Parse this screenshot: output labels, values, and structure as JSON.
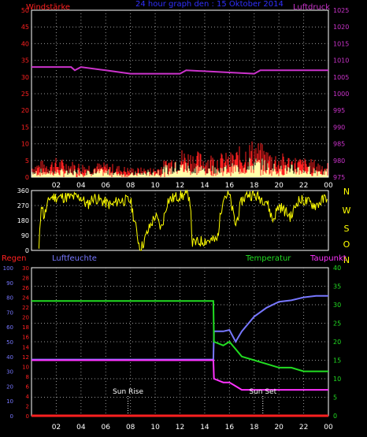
{
  "title": "24 hour graph den : 15 Oktober 2014",
  "colors": {
    "background": "#000000",
    "grid": "#9a9a9a",
    "frame": "#ffffff",
    "wind": "#ff2020",
    "gust": "#ffffaa",
    "pressure": "#cc33cc",
    "direction": "#ffff00",
    "rain": "#ff2020",
    "humidity": "#7777ff",
    "temperature": "#22dd22",
    "dewpoint": "#ff33ff",
    "sun_marker": "#ffffff",
    "title": "#3030ff"
  },
  "x_ticks": [
    "02",
    "04",
    "06",
    "08",
    "10",
    "12",
    "14",
    "16",
    "18",
    "20",
    "22",
    "00"
  ],
  "panel1": {
    "left_label": "Windstärke",
    "right_label": "Luftdruck",
    "left_ticks": [
      "0",
      "5",
      "10",
      "15",
      "20",
      "25",
      "30",
      "35",
      "40",
      "45",
      "50"
    ],
    "right_ticks": [
      "975",
      "980",
      "985",
      "990",
      "995",
      "1000",
      "1005",
      "1010",
      "1015",
      "1020",
      "1025"
    ]
  },
  "panel2": {
    "left_ticks": [
      "0",
      "90",
      "180",
      "270",
      "360"
    ],
    "right_labels": [
      "N",
      "W",
      "S",
      "O",
      "N"
    ]
  },
  "panel3": {
    "rain_label": "Regen",
    "humidity_label": "Luftfeuchte",
    "temperature_label": "Temperatur",
    "dewpoint_label": "Taupunkt",
    "rain_ticks": [
      "0",
      "2",
      "4",
      "6",
      "8",
      "10",
      "12",
      "14",
      "16",
      "18",
      "20",
      "22",
      "24",
      "26",
      "28",
      "30"
    ],
    "humidity_ticks": [
      "0",
      "10",
      "20",
      "30",
      "40",
      "50",
      "60",
      "70",
      "80",
      "90",
      "100"
    ],
    "temperature_ticks": [
      "0",
      "5",
      "10",
      "15",
      "20",
      "25",
      "30",
      "35",
      "40"
    ],
    "sun_rise_label": "Sun Rise",
    "sun_set_label": "Sun Set"
  },
  "chart_data": [
    {
      "type": "line",
      "name": "wind-pressure",
      "x_unit": "hour",
      "xlim": [
        0,
        24
      ],
      "ylim_left": [
        0,
        50
      ],
      "ylim_right": [
        975,
        1025
      ],
      "pressure": {
        "x": [
          0,
          3.2,
          3.5,
          4.0,
          6.0,
          8.0,
          10.0,
          12.0,
          12.5,
          18.0,
          18.5,
          24.0
        ],
        "values": [
          1008,
          1008,
          1007,
          1008,
          1007,
          1006,
          1006,
          1006,
          1007,
          1006,
          1007,
          1007
        ]
      },
      "wind_profile": {
        "x": [
          0,
          2,
          4,
          6,
          8,
          10,
          12,
          14,
          16,
          18,
          19,
          20,
          22,
          24
        ],
        "values": [
          3,
          4,
          3,
          3,
          2,
          2,
          6,
          5,
          5,
          8,
          6,
          5,
          4,
          3
        ]
      },
      "gust_profile": {
        "x": [
          0,
          2,
          4,
          6,
          8,
          10,
          12,
          14,
          16,
          18,
          19,
          20,
          22,
          24
        ],
        "values": [
          2,
          2,
          2,
          2,
          1,
          2,
          4,
          3,
          3,
          5,
          4,
          3,
          3,
          2
        ]
      }
    },
    {
      "type": "line",
      "name": "wind-direction",
      "x_unit": "hour",
      "xlim": [
        0,
        24
      ],
      "ylim": [
        0,
        360
      ],
      "x": [
        0.6,
        0.8,
        1.0,
        1.5,
        4.0,
        4.5,
        5.0,
        6.5,
        7.0,
        8.0,
        8.8,
        9.5,
        10.0,
        10.5,
        11.0,
        12.0,
        12.8,
        13.0,
        14.0,
        15.0,
        15.5,
        16.0,
        16.5,
        17.0,
        17.5,
        18.0,
        19.0,
        19.5,
        20.0,
        21.0,
        21.5,
        22.0,
        23.0,
        24.0
      ],
      "values": [
        0,
        300,
        200,
        320,
        320,
        270,
        320,
        270,
        300,
        300,
        0,
        130,
        210,
        130,
        300,
        330,
        330,
        40,
        60,
        60,
        330,
        330,
        150,
        300,
        340,
        330,
        300,
        180,
        270,
        200,
        300,
        300,
        270,
        330
      ]
    },
    {
      "type": "line",
      "name": "humidity-temperature-dewpoint",
      "x_unit": "hour",
      "xlim": [
        0,
        24
      ],
      "ylim_rain": [
        0,
        30
      ],
      "ylim_humidity": [
        0,
        100
      ],
      "ylim_temperature": [
        0,
        40
      ],
      "temperature": {
        "x": [
          0,
          14.7,
          14.75,
          15.5,
          16.0,
          16.5,
          17.0,
          18.0,
          19.0,
          20.0,
          21.0,
          22.0,
          23.0,
          24.0
        ],
        "values": [
          31,
          31,
          20,
          19,
          20,
          18,
          16,
          15,
          14,
          13,
          13,
          12,
          12,
          12
        ]
      },
      "humidity": {
        "x": [
          0,
          14.7,
          14.75,
          15.5,
          16.0,
          16.5,
          17.0,
          18.0,
          19.0,
          20.0,
          21.0,
          22.0,
          23.0,
          24.0
        ],
        "values": [
          38,
          38,
          57,
          57,
          58,
          50,
          57,
          67,
          73,
          77,
          78,
          80,
          81,
          81
        ]
      },
      "dewpoint": {
        "x": [
          0,
          14.7,
          14.75,
          15.5,
          16.0,
          16.5,
          17.0,
          18.0,
          19.0,
          20.0,
          22.0,
          24.0
        ],
        "values": [
          15,
          15,
          10,
          9,
          9,
          8,
          7,
          7,
          7,
          7,
          7,
          7
        ]
      },
      "rain": {
        "x": [
          0,
          24
        ],
        "values": [
          0,
          0
        ]
      },
      "sun_rise_hour": 7.8,
      "sun_set_hour": 18.7
    }
  ]
}
